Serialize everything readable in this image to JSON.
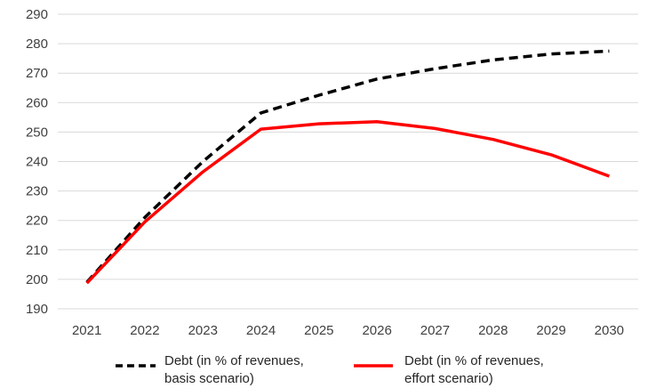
{
  "chart_data": {
    "type": "line",
    "title": "",
    "xlabel": "",
    "ylabel": "",
    "categories": [
      "2021",
      "2022",
      "2023",
      "2024",
      "2025",
      "2026",
      "2027",
      "2028",
      "2029",
      "2030"
    ],
    "ylim": [
      190,
      290
    ],
    "yticks": [
      "190",
      "200",
      "210",
      "220",
      "230",
      "240",
      "250",
      "260",
      "270",
      "280",
      "290"
    ],
    "grid": "horizontal",
    "legend_position": "bottom",
    "series": [
      {
        "name": "Debt (in % of revenues, basis scenario)",
        "legend_lines": [
          "Debt (in % of revenues,",
          "basis scenario)"
        ],
        "color": "#000000",
        "style": "dashed",
        "values": [
          199,
          221,
          240,
          256.5,
          262.5,
          268,
          271.5,
          274.5,
          276.5,
          277.5
        ]
      },
      {
        "name": "Debt (in % of revenues, effort scenario)",
        "legend_lines": [
          "Debt (in % of revenues,",
          "effort scenario)"
        ],
        "color": "#ff0000",
        "style": "solid",
        "values": [
          198.7,
          219.5,
          236.5,
          251,
          252.8,
          253.5,
          251.2,
          247.5,
          242.3,
          235
        ]
      }
    ]
  }
}
